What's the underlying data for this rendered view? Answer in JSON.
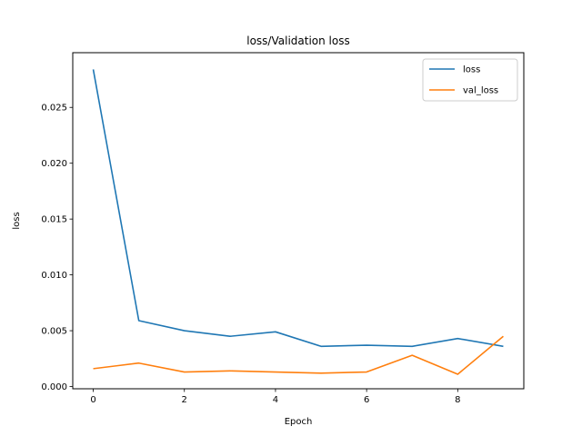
{
  "chart_data": {
    "type": "line",
    "title": "loss/Validation loss",
    "xlabel": "Epoch",
    "ylabel": "loss",
    "x": [
      0,
      1,
      2,
      3,
      4,
      5,
      6,
      7,
      8,
      9
    ],
    "series": [
      {
        "name": "loss",
        "color": "#1f77b4",
        "values": [
          0.0284,
          0.0059,
          0.005,
          0.0045,
          0.0049,
          0.0036,
          0.0037,
          0.0036,
          0.0043,
          0.0036
        ]
      },
      {
        "name": "val_loss",
        "color": "#ff7f0e",
        "values": [
          0.0016,
          0.0021,
          0.0013,
          0.0014,
          0.0013,
          0.0012,
          0.0013,
          0.0028,
          0.0011,
          0.0045
        ]
      }
    ],
    "xlim": [
      -0.45,
      9.45
    ],
    "ylim": [
      -0.0002,
      0.0299
    ],
    "xticks": [
      0,
      2,
      4,
      6,
      8
    ],
    "xtick_labels": [
      "0",
      "2",
      "4",
      "6",
      "8"
    ],
    "yticks": [
      0,
      0.005,
      0.01,
      0.015,
      0.02,
      0.025
    ],
    "ytick_labels": [
      "0.000",
      "0.005",
      "0.010",
      "0.015",
      "0.020",
      "0.025"
    ],
    "grid": false,
    "legend_position": "top-right"
  }
}
